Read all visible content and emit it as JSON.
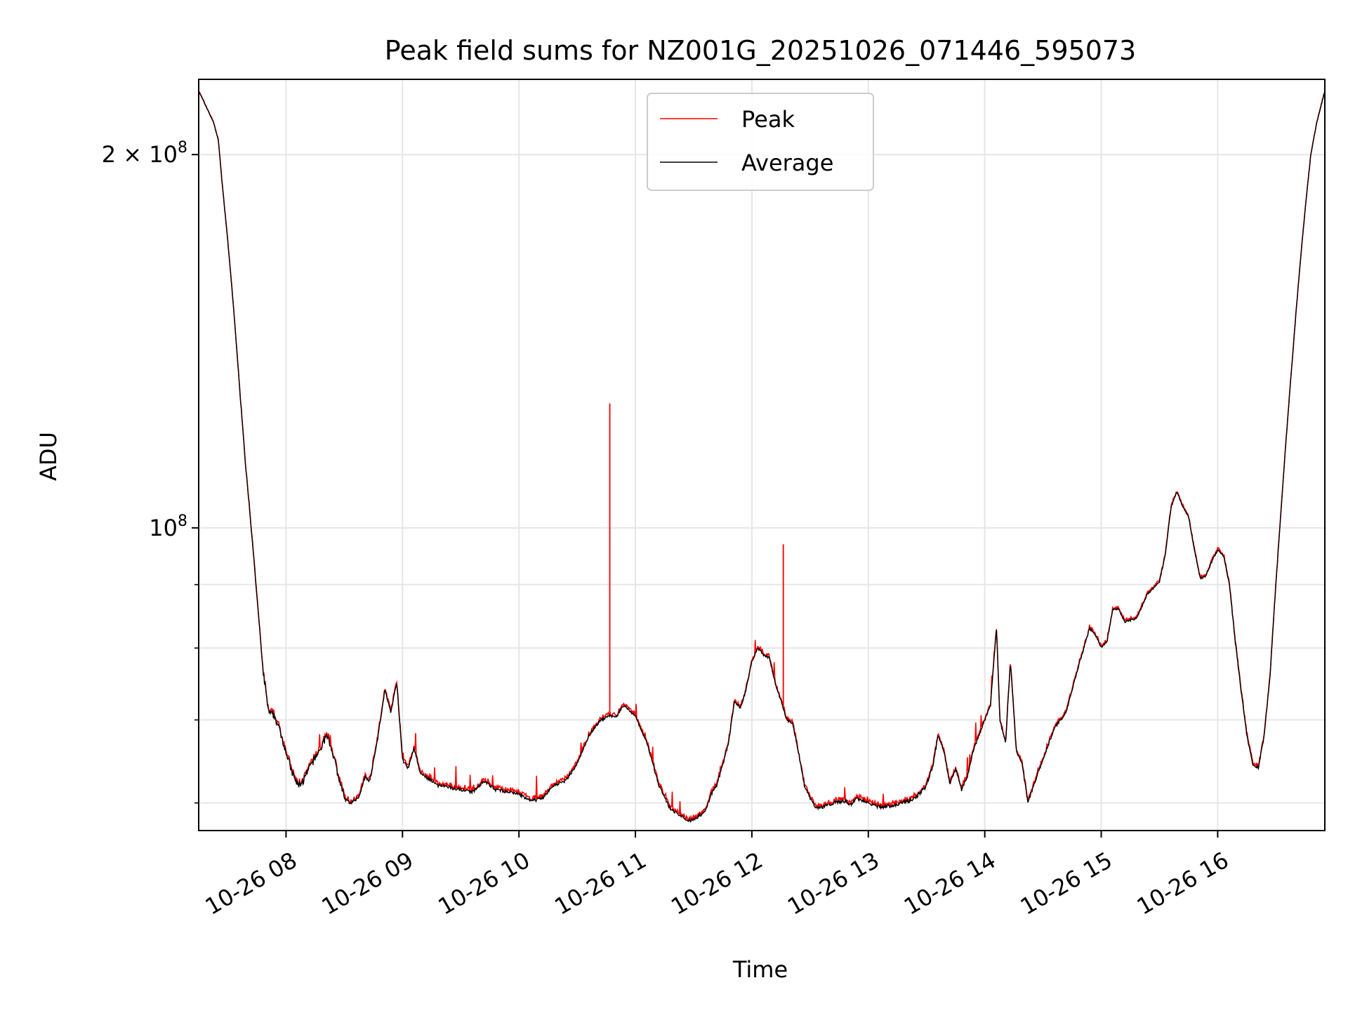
{
  "chart_data": {
    "type": "line",
    "title": "Peak field sums for NZ001G_20251026_071446_595073",
    "xlabel": "Time",
    "ylabel": "ADU",
    "yscale": "log",
    "ylim": [
      57000000,
      230000000
    ],
    "xlim_hours": [
      7.25,
      16.92
    ],
    "grid": true,
    "legend_position": "upper-center",
    "x_ticks": [
      {
        "value": 8,
        "label": "10-26 08"
      },
      {
        "value": 9,
        "label": "10-26 09"
      },
      {
        "value": 10,
        "label": "10-26 10"
      },
      {
        "value": 11,
        "label": "10-26 11"
      },
      {
        "value": 12,
        "label": "10-26 12"
      },
      {
        "value": 13,
        "label": "10-26 13"
      },
      {
        "value": 14,
        "label": "10-26 14"
      },
      {
        "value": 15,
        "label": "10-26 15"
      },
      {
        "value": 16,
        "label": "10-26 16"
      }
    ],
    "y_major_ticks": [
      {
        "value": 100000000,
        "base": "10",
        "exp": "8",
        "coef": ""
      },
      {
        "value": 200000000,
        "base": "10",
        "exp": "8",
        "coef": "2 × "
      }
    ],
    "y_minor_ticks": [
      60000000,
      70000000,
      80000000,
      90000000
    ],
    "series": [
      {
        "name": "Peak",
        "color": "#ff0000"
      },
      {
        "name": "Average",
        "color": "#000000"
      }
    ],
    "average_points": [
      [
        7.25,
        225
      ],
      [
        7.3,
        220
      ],
      [
        7.38,
        212
      ],
      [
        7.42,
        205
      ],
      [
        7.45,
        190
      ],
      [
        7.5,
        170
      ],
      [
        7.55,
        150
      ],
      [
        7.6,
        130
      ],
      [
        7.65,
        113
      ],
      [
        7.7,
        100
      ],
      [
        7.75,
        88
      ],
      [
        7.8,
        77
      ],
      [
        7.85,
        71
      ],
      [
        7.9,
        70.5
      ],
      [
        7.95,
        68.5
      ],
      [
        8.0,
        66
      ],
      [
        8.05,
        63.5
      ],
      [
        8.1,
        62
      ],
      [
        8.15,
        62.5
      ],
      [
        8.2,
        64
      ],
      [
        8.3,
        66.5
      ],
      [
        8.35,
        68
      ],
      [
        8.4,
        66
      ],
      [
        8.45,
        63
      ],
      [
        8.5,
        60.5
      ],
      [
        8.55,
        60
      ],
      [
        8.62,
        60.5
      ],
      [
        8.68,
        63
      ],
      [
        8.72,
        62.5
      ],
      [
        8.78,
        67
      ],
      [
        8.85,
        74
      ],
      [
        8.9,
        71
      ],
      [
        8.95,
        75
      ],
      [
        9.0,
        65
      ],
      [
        9.05,
        64
      ],
      [
        9.1,
        66.5
      ],
      [
        9.15,
        63.5
      ],
      [
        9.3,
        62
      ],
      [
        9.5,
        61.5
      ],
      [
        9.6,
        61.2
      ],
      [
        9.7,
        62.5
      ],
      [
        9.8,
        61.5
      ],
      [
        10.0,
        61
      ],
      [
        10.1,
        60.2
      ],
      [
        10.2,
        60.5
      ],
      [
        10.3,
        62
      ],
      [
        10.4,
        62.5
      ],
      [
        10.5,
        64.5
      ],
      [
        10.6,
        68
      ],
      [
        10.7,
        70
      ],
      [
        10.78,
        70.5
      ],
      [
        10.84,
        70.5
      ],
      [
        10.9,
        72
      ],
      [
        11.0,
        70.5
      ],
      [
        11.1,
        67
      ],
      [
        11.2,
        62
      ],
      [
        11.3,
        59.3
      ],
      [
        11.4,
        58.5
      ],
      [
        11.45,
        58
      ],
      [
        11.5,
        58.2
      ],
      [
        11.6,
        59
      ],
      [
        11.65,
        61
      ],
      [
        11.7,
        62
      ],
      [
        11.8,
        67
      ],
      [
        11.85,
        72.5
      ],
      [
        11.9,
        71.5
      ],
      [
        11.95,
        74
      ],
      [
        12.0,
        78
      ],
      [
        12.05,
        80
      ],
      [
        12.1,
        79
      ],
      [
        12.15,
        78.5
      ],
      [
        12.2,
        75
      ],
      [
        12.3,
        70
      ],
      [
        12.35,
        69.5
      ],
      [
        12.4,
        66
      ],
      [
        12.45,
        62
      ],
      [
        12.5,
        60.5
      ],
      [
        12.55,
        59.5
      ],
      [
        12.6,
        59.5
      ],
      [
        12.7,
        60
      ],
      [
        12.8,
        60.2
      ],
      [
        12.85,
        59.8
      ],
      [
        12.9,
        60.5
      ],
      [
        13.0,
        60
      ],
      [
        13.1,
        59.5
      ],
      [
        13.2,
        59.7
      ],
      [
        13.3,
        60
      ],
      [
        13.4,
        60.5
      ],
      [
        13.5,
        62
      ],
      [
        13.55,
        64
      ],
      [
        13.6,
        68
      ],
      [
        13.65,
        66
      ],
      [
        13.7,
        62
      ],
      [
        13.75,
        64
      ],
      [
        13.8,
        61.5
      ],
      [
        13.85,
        63
      ],
      [
        13.9,
        66
      ],
      [
        14.0,
        70
      ],
      [
        14.05,
        72
      ],
      [
        14.1,
        83
      ],
      [
        14.13,
        70
      ],
      [
        14.18,
        67
      ],
      [
        14.22,
        78
      ],
      [
        14.27,
        66
      ],
      [
        14.32,
        64.5
      ],
      [
        14.37,
        60
      ],
      [
        14.42,
        62
      ],
      [
        14.5,
        65
      ],
      [
        14.6,
        69
      ],
      [
        14.7,
        71
      ],
      [
        14.8,
        77
      ],
      [
        14.9,
        83
      ],
      [
        14.95,
        82
      ],
      [
        15.0,
        80
      ],
      [
        15.05,
        81
      ],
      [
        15.1,
        86
      ],
      [
        15.15,
        86
      ],
      [
        15.2,
        84
      ],
      [
        15.3,
        84.5
      ],
      [
        15.4,
        88.5
      ],
      [
        15.5,
        90.5
      ],
      [
        15.55,
        95
      ],
      [
        15.6,
        104
      ],
      [
        15.65,
        107
      ],
      [
        15.7,
        104
      ],
      [
        15.75,
        102
      ],
      [
        15.8,
        96
      ],
      [
        15.85,
        91
      ],
      [
        15.9,
        91.5
      ],
      [
        15.95,
        94
      ],
      [
        16.0,
        96
      ],
      [
        16.05,
        95
      ],
      [
        16.1,
        90
      ],
      [
        16.15,
        81
      ],
      [
        16.2,
        74
      ],
      [
        16.25,
        68
      ],
      [
        16.3,
        64.5
      ],
      [
        16.35,
        64
      ],
      [
        16.4,
        68
      ],
      [
        16.45,
        76
      ],
      [
        16.5,
        90
      ],
      [
        16.55,
        105
      ],
      [
        16.6,
        122
      ],
      [
        16.65,
        140
      ],
      [
        16.7,
        160
      ],
      [
        16.75,
        180
      ],
      [
        16.8,
        200
      ],
      [
        16.85,
        212
      ],
      [
        16.92,
        225
      ]
    ],
    "peak_spikes": [
      {
        "x": 10.78,
        "y": 126
      },
      {
        "x": 12.27,
        "y": 97
      }
    ]
  },
  "legend": {
    "peak_label": "Peak",
    "average_label": "Average"
  }
}
